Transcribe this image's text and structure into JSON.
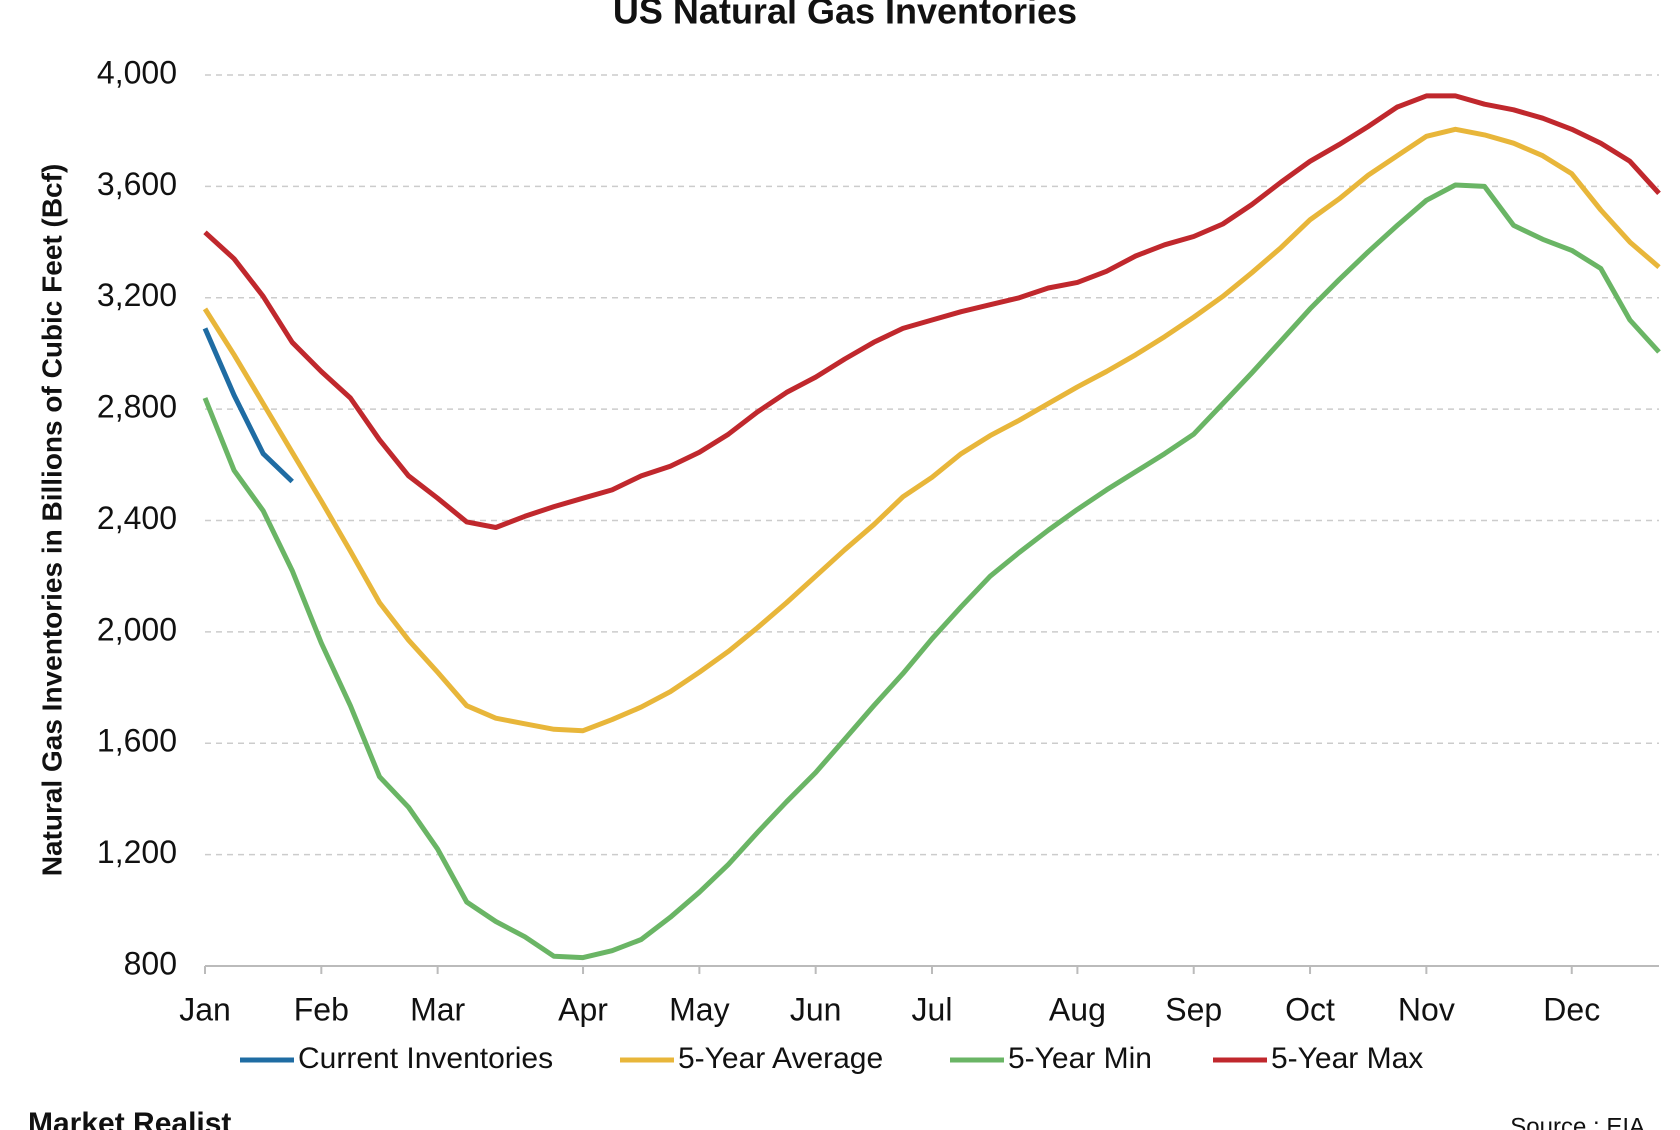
{
  "chart_data": {
    "type": "line",
    "title": "US Natural Gas Inventories",
    "y_label": "Natural Gas Inventories in Billions of Cubic Feet (Bcf)",
    "categories": [
      "Jan",
      null,
      null,
      null,
      "Feb",
      null,
      null,
      null,
      "Mar",
      null,
      null,
      null,
      null,
      "Apr",
      null,
      null,
      null,
      "May",
      null,
      null,
      null,
      "Jun",
      null,
      null,
      null,
      "Jul",
      null,
      null,
      null,
      null,
      "Aug",
      null,
      null,
      null,
      "Sep",
      null,
      null,
      null,
      "Oct",
      null,
      null,
      null,
      "Nov",
      null,
      null,
      null,
      null,
      "Dec",
      null,
      null,
      null
    ],
    "series": [
      {
        "name": "Current Inventories",
        "color": "#1f6ca3",
        "values": [
          3090,
          2850,
          2640,
          2540,
          null,
          null,
          null,
          null,
          null,
          null,
          null,
          null,
          null,
          null,
          null,
          null,
          null,
          null,
          null,
          null,
          null,
          null,
          null,
          null,
          null,
          null,
          null,
          null,
          null,
          null,
          null,
          null,
          null,
          null,
          null,
          null,
          null,
          null,
          null,
          null,
          null,
          null,
          null,
          null,
          null,
          null,
          null,
          null,
          null,
          null,
          null
        ]
      },
      {
        "name": "5-Year Average",
        "color": "#e8b63a",
        "values": [
          3160,
          2995,
          2820,
          2645,
          2470,
          2290,
          2105,
          1970,
          1855,
          1735,
          1690,
          1670,
          1650,
          1645,
          1685,
          1730,
          1785,
          1855,
          1930,
          2015,
          2105,
          2200,
          2295,
          2385,
          2485,
          2555,
          2640,
          2705,
          2760,
          2820,
          2880,
          2935,
          2995,
          3060,
          3130,
          3205,
          3290,
          3380,
          3480,
          3555,
          3640,
          3710,
          3780,
          3805,
          3785,
          3755,
          3710,
          3645,
          3515,
          3400,
          3310
        ]
      },
      {
        "name": "5-Year Min",
        "color": "#6ab565",
        "values": [
          2840,
          2580,
          2435,
          2220,
          1960,
          1735,
          1480,
          1370,
          1220,
          1030,
          960,
          905,
          835,
          830,
          855,
          895,
          975,
          1065,
          1165,
          1280,
          1390,
          1495,
          1615,
          1735,
          1850,
          1975,
          2090,
          2200,
          2285,
          2365,
          2440,
          2510,
          2575,
          2640,
          2710,
          2820,
          2930,
          3045,
          3160,
          3265,
          3365,
          3460,
          3550,
          3605,
          3600,
          3460,
          3410,
          3370,
          3305,
          3120,
          3005
        ]
      },
      {
        "name": "5-Year Max",
        "color": "#c0282d",
        "values": [
          3435,
          3340,
          3205,
          3040,
          2935,
          2840,
          2690,
          2560,
          2480,
          2395,
          2375,
          2415,
          2450,
          2480,
          2510,
          2560,
          2595,
          2645,
          2710,
          2790,
          2860,
          2915,
          2980,
          3040,
          3090,
          3120,
          3150,
          3175,
          3200,
          3235,
          3255,
          3295,
          3350,
          3390,
          3420,
          3465,
          3535,
          3615,
          3690,
          3750,
          3815,
          3885,
          3925,
          3925,
          3895,
          3875,
          3845,
          3805,
          3755,
          3690,
          3575
        ]
      }
    ],
    "ylim": [
      800,
      4000
    ],
    "yticks": [
      800,
      {
        "value": 1200,
        "label": "1,200"
      },
      {
        "value": 1600,
        "label": "1,600"
      },
      {
        "value": 2000,
        "label": "2,000"
      },
      {
        "value": 2400,
        "label": "2,400"
      },
      {
        "value": 2800,
        "label": "2,800"
      },
      {
        "value": 3200,
        "label": "3,200"
      },
      {
        "value": 3600,
        "label": "3,600"
      },
      {
        "value": 4000,
        "label": "4,000"
      }
    ],
    "grid": true,
    "legend": "bottom",
    "brand": "Market Realist",
    "source": "Source : EIA"
  }
}
